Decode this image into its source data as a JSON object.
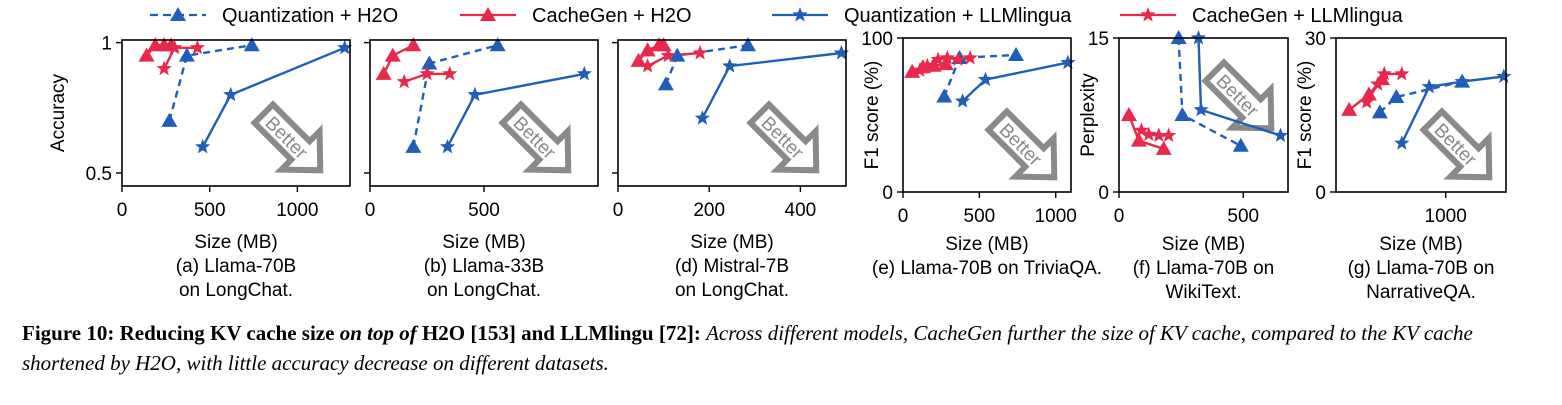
{
  "legend": [
    {
      "label": "Quantization + H2O",
      "color": "#1f5fb8",
      "marker": "triangle",
      "dash": true
    },
    {
      "label": "CacheGen + H2O",
      "color": "#e8294b",
      "marker": "triangle",
      "dash": false
    },
    {
      "label": "Quantization + LLMlingua",
      "color": "#1f5fb8",
      "marker": "star",
      "dash": false
    },
    {
      "label": "CacheGen + LLMlingua",
      "color": "#e8294b",
      "marker": "star",
      "dash": false
    }
  ],
  "better_label": "Better",
  "caption": {
    "label": "Figure 10:",
    "title_a": "Reducing KV cache size",
    "title_b": "on top of",
    "title_c": "H2O [153] and LLMlingu [72]:",
    "body": "Across different models, CacheGen further the size of KV cache, compared to the KV cache shortened by H2O, with little accuracy decrease on different datasets."
  },
  "chart_data": [
    {
      "type": "line",
      "ylabel": "Accuracy",
      "xlabel": "Size (MB)",
      "sub1": "(a) Llama-70B",
      "sub2": "on LongChat.",
      "xlim": [
        0,
        1300
      ],
      "ylim": [
        0.45,
        1.01
      ],
      "xticks": [
        0,
        500,
        1000
      ],
      "yticks": [
        0.5,
        1
      ],
      "ytick_labels": [
        "0.5",
        "1"
      ],
      "series": [
        {
          "name": "Quantization + H2O",
          "x": [
            270,
            370,
            740
          ],
          "y": [
            0.7,
            0.95,
            0.99
          ]
        },
        {
          "name": "CacheGen + H2O",
          "x": [
            140,
            190,
            240,
            280
          ],
          "y": [
            0.95,
            0.99,
            0.99,
            0.99
          ]
        },
        {
          "name": "Quantization + LLMlingua",
          "x": [
            460,
            620,
            1270
          ],
          "y": [
            0.6,
            0.8,
            0.98
          ]
        },
        {
          "name": "CacheGen + LLMlingua",
          "x": [
            240,
            300,
            430
          ],
          "y": [
            0.9,
            0.98,
            0.98
          ]
        }
      ]
    },
    {
      "type": "line",
      "ylabel": "",
      "xlabel": "Size (MB)",
      "sub1": "(b) Llama-33B",
      "sub2": "on LongChat.",
      "xlim": [
        0,
        1000
      ],
      "ylim": [
        0.45,
        1.01
      ],
      "xticks": [
        0,
        500
      ],
      "yticks": [
        0.5,
        1
      ],
      "ytick_labels": [
        "",
        ""
      ],
      "series": [
        {
          "name": "Quantization + H2O",
          "x": [
            190,
            260,
            560
          ],
          "y": [
            0.6,
            0.92,
            0.99
          ]
        },
        {
          "name": "CacheGen + H2O",
          "x": [
            60,
            100,
            190
          ],
          "y": [
            0.88,
            0.95,
            0.99
          ]
        },
        {
          "name": "Quantization + LLMlingua",
          "x": [
            340,
            460,
            940
          ],
          "y": [
            0.6,
            0.8,
            0.88
          ]
        },
        {
          "name": "CacheGen + LLMlingua",
          "x": [
            150,
            250,
            350
          ],
          "y": [
            0.85,
            0.88,
            0.88
          ]
        }
      ]
    },
    {
      "type": "line",
      "ylabel": "",
      "xlabel": "Size (MB)",
      "sub1": "(d) Mistral-7B",
      "sub2": "on LongChat.",
      "xlim": [
        0,
        500
      ],
      "ylim": [
        0.45,
        1.01
      ],
      "xticks": [
        0,
        200,
        400
      ],
      "yticks": [
        0.5,
        1
      ],
      "ytick_labels": [
        "",
        ""
      ],
      "series": [
        {
          "name": "Quantization + H2O",
          "x": [
            105,
            130,
            285
          ],
          "y": [
            0.84,
            0.95,
            0.99
          ]
        },
        {
          "name": "CacheGen + H2O",
          "x": [
            45,
            65,
            90,
            100
          ],
          "y": [
            0.93,
            0.97,
            0.99,
            0.99
          ]
        },
        {
          "name": "Quantization + LLMlingua",
          "x": [
            185,
            245,
            490
          ],
          "y": [
            0.71,
            0.91,
            0.96
          ]
        },
        {
          "name": "CacheGen + LLMlingua",
          "x": [
            65,
            110,
            180
          ],
          "y": [
            0.91,
            0.95,
            0.96
          ]
        }
      ]
    },
    {
      "type": "line",
      "ylabel": "F1 score (%)",
      "xlabel": "Size (MB)",
      "sub1": "(e) Llama-70B on TriviaQA.",
      "sub2": "",
      "xlim": [
        0,
        1100
      ],
      "ylim": [
        0,
        100
      ],
      "xticks": [
        0,
        500,
        1000
      ],
      "yticks": [
        0,
        100
      ],
      "ytick_labels": [
        "0",
        "100"
      ],
      "series": [
        {
          "name": "Quantization + H2O",
          "x": [
            270,
            370,
            740
          ],
          "y": [
            62,
            87,
            89
          ]
        },
        {
          "name": "CacheGen + H2O",
          "x": [
            60,
            130,
            200,
            280
          ],
          "y": [
            78,
            81,
            82,
            83
          ]
        },
        {
          "name": "Quantization + LLMlingua",
          "x": [
            390,
            540,
            1080
          ],
          "y": [
            59,
            73,
            84
          ]
        },
        {
          "name": "CacheGen + LLMlingua",
          "x": [
            110,
            160,
            230,
            290,
            360,
            440
          ],
          "y": [
            79,
            82,
            86,
            87,
            86,
            87
          ]
        }
      ]
    },
    {
      "type": "line",
      "ylabel": "Perplexity",
      "xlabel": "Size (MB)",
      "sub1": "(f) Llama-70B on",
      "sub2": "WikiText.",
      "xlim": [
        0,
        680
      ],
      "ylim": [
        0,
        15
      ],
      "xticks": [
        0,
        500
      ],
      "yticks": [
        0,
        15
      ],
      "ytick_labels": [
        "0",
        "15"
      ],
      "series": [
        {
          "name": "Quantization + H2O",
          "x": [
            240,
            255,
            490
          ],
          "y": [
            15.0,
            7.5,
            4.5
          ]
        },
        {
          "name": "CacheGen + H2O",
          "x": [
            40,
            80,
            180
          ],
          "y": [
            7.5,
            5.0,
            4.2
          ]
        },
        {
          "name": "Quantization + LLMlingua",
          "x": [
            320,
            330,
            650
          ],
          "y": [
            15.0,
            8.0,
            5.5
          ]
        },
        {
          "name": "CacheGen + LLMlingua",
          "x": [
            90,
            120,
            160,
            200
          ],
          "y": [
            6.0,
            5.6,
            5.5,
            5.5
          ]
        }
      ]
    },
    {
      "type": "line",
      "ylabel": "F1 score (%)",
      "xlabel": "Size (MB)",
      "sub1": "(g) Llama-70B on",
      "sub2": "NarrativeQA.",
      "xlim": [
        0,
        1550
      ],
      "ylim": [
        0,
        30
      ],
      "xticks": [
        1000
      ],
      "yticks": [
        0,
        30
      ],
      "ytick_labels": [
        "0",
        "30"
      ],
      "series": [
        {
          "name": "Quantization + H2O",
          "x": [
            400,
            550,
            1150
          ],
          "y": [
            15.5,
            18.5,
            21.5
          ]
        },
        {
          "name": "CacheGen + H2O",
          "x": [
            120,
            300,
            420
          ],
          "y": [
            16,
            19,
            22
          ]
        },
        {
          "name": "Quantization + LLMlingua",
          "x": [
            600,
            850,
            1150,
            1530
          ],
          "y": [
            9.5,
            20.5,
            21.5,
            22.5
          ]
        },
        {
          "name": "CacheGen + LLMlingua",
          "x": [
            280,
            380,
            440,
            600
          ],
          "y": [
            17.5,
            21,
            23,
            23
          ]
        }
      ]
    }
  ]
}
